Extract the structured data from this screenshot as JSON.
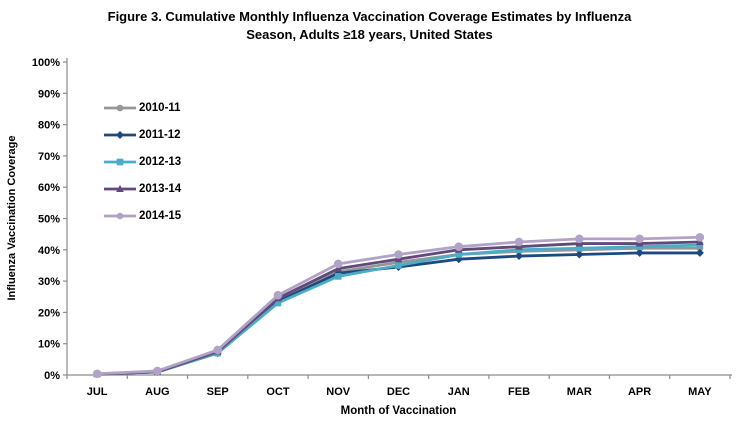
{
  "figure": {
    "title_lines": [
      "Figure 3. Cumulative Monthly Influenza Vaccination Coverage Estimates by Influenza",
      "Season, Adults ≥18 years, United States"
    ]
  },
  "chart_data": {
    "type": "line",
    "title": "Figure 3. Cumulative Monthly Influenza Vaccination Coverage Estimates by Influenza Season, Adults ≥18 years, United States",
    "xlabel": "Month of Vaccination",
    "ylabel": "Influenza Vaccination Coverage",
    "ylim": [
      0,
      100
    ],
    "ytick_step": 10,
    "ytick_suffix": "%",
    "grid": false,
    "legend_position": "inside-top-left",
    "axis_color": "#8c8c8c",
    "categories": [
      "JUL",
      "AUG",
      "SEP",
      "OCT",
      "NOV",
      "DEC",
      "JAN",
      "FEB",
      "MAR",
      "APR",
      "MAY"
    ],
    "series": [
      {
        "name": "2010-11",
        "color": "#969696",
        "marker": "circle",
        "values": [
          0.3,
          1,
          7,
          24,
          33,
          36,
          38.5,
          39.5,
          40,
          40.5,
          40.5
        ]
      },
      {
        "name": "2011-12",
        "color": "#1F497D",
        "marker": "diamond",
        "values": [
          0.3,
          1,
          7,
          23.5,
          32.5,
          34.5,
          37,
          38,
          38.5,
          39,
          39
        ]
      },
      {
        "name": "2012-13",
        "color": "#4BACC6",
        "marker": "square",
        "values": [
          0.3,
          1,
          7,
          23,
          31.5,
          35,
          38.5,
          40,
          40.5,
          41,
          41.5
        ]
      },
      {
        "name": "2013-14",
        "color": "#604A7B",
        "marker": "triangle",
        "values": [
          0.3,
          1,
          7.5,
          24.5,
          34,
          37,
          40,
          41,
          42,
          42,
          42.5
        ]
      },
      {
        "name": "2014-15",
        "color": "#B3A2C7",
        "marker": "circle",
        "values": [
          0.4,
          1.3,
          8,
          25.5,
          35.5,
          38.5,
          41,
          42.5,
          43.5,
          43.5,
          44
        ]
      }
    ]
  }
}
